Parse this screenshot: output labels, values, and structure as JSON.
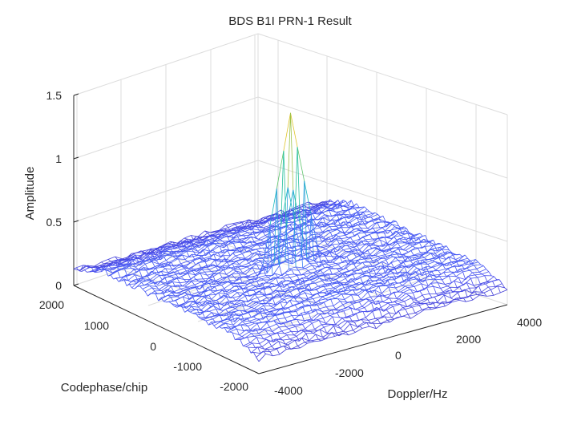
{
  "chart_data": {
    "type": "surface-mesh",
    "title": "BDS B1I PRN-1 Result",
    "xlabel": "Codephase/chip",
    "ylabel": "Doppler/Hz",
    "zlabel": "Amplitude",
    "x_range": [
      -2046,
      2046
    ],
    "y_range": [
      -5000,
      5000
    ],
    "z_range": [
      0,
      1.5
    ],
    "x_ticks": [
      "2000",
      "1000",
      "0",
      "-1000",
      "-2000"
    ],
    "y_ticks": [
      "-4000",
      "-2000",
      "0",
      "2000",
      "4000"
    ],
    "z_ticks": [
      "1.5",
      "1",
      "0.5",
      "0"
    ],
    "noise_floor": 0.22,
    "peak": {
      "codephase": 0,
      "doppler": 0,
      "amplitude": 1.35
    },
    "colormap": [
      "#3e26a8",
      "#4a50f0",
      "#3d78fd",
      "#2c9adc",
      "#13b5c1",
      "#28c392",
      "#7bc65a",
      "#d6bb30",
      "#f9e120"
    ],
    "grid": true
  }
}
